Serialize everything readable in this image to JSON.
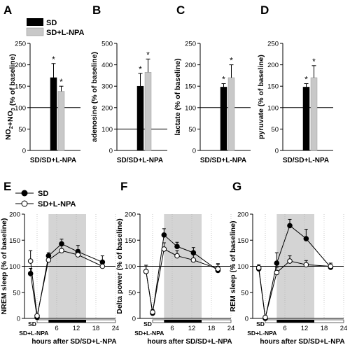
{
  "figure": {
    "legend_top": {
      "sd": "SD",
      "sdl": "SD+L-NPA"
    },
    "legend_bottom": {
      "sd": "SD",
      "sdl": "SD+L-NPA"
    },
    "colors": {
      "sd": "#000000",
      "sdl": "#c8c8c8",
      "shade": "#d4d4d4"
    }
  },
  "chart_data": [
    {
      "panel": "A",
      "type": "bar",
      "categories": [
        "SD",
        "SD+L-NPA"
      ],
      "values": [
        170,
        138
      ],
      "errors": [
        33,
        12
      ],
      "significant": [
        true,
        true
      ],
      "ylabel_main": "NO",
      "ylabel_sub1": "2",
      "ylabel_mid": "+NO",
      "ylabel_sub2": "3",
      "ylabel_tail": " (% of baseline)",
      "xlabel": "SD/SD+L-NPA",
      "ylim": [
        0,
        250
      ],
      "yticks": [
        "0",
        "50",
        "100",
        "150",
        "200",
        "250"
      ],
      "baseline": 100
    },
    {
      "panel": "B",
      "type": "bar",
      "categories": [
        "SD",
        "SD+L-NPA"
      ],
      "values": [
        300,
        365
      ],
      "errors": [
        60,
        62
      ],
      "significant": [
        true,
        true
      ],
      "ylabel": "adenosine (% of baseline)",
      "xlabel": "SD/SD+L-NPA",
      "ylim": [
        0,
        500
      ],
      "yticks": [
        "0",
        "100",
        "200",
        "300",
        "400",
        "500"
      ],
      "baseline": 100
    },
    {
      "panel": "C",
      "type": "bar",
      "categories": [
        "SD",
        "SD+L-NPA"
      ],
      "values": [
        148,
        170
      ],
      "errors": [
        8,
        30
      ],
      "significant": [
        true,
        true
      ],
      "ylabel": "lactate (% of baseline)",
      "xlabel": "SD/SD+L-NPA",
      "ylim": [
        0,
        250
      ],
      "yticks": [
        "0",
        "50",
        "100",
        "150",
        "200",
        "250"
      ],
      "baseline": 100
    },
    {
      "panel": "D",
      "type": "bar",
      "categories": [
        "SD",
        "SD+L-NPA"
      ],
      "values": [
        148,
        170
      ],
      "errors": [
        8,
        28
      ],
      "significant": [
        true,
        true
      ],
      "ylabel": "pyruvate (% of baseline)",
      "xlabel": "SD/SD+L-NPA",
      "ylim": [
        0,
        250
      ],
      "yticks": [
        "0",
        "50",
        "100",
        "150",
        "200",
        "250"
      ],
      "baseline": 100
    },
    {
      "panel": "E",
      "type": "line",
      "ylabel": "NREM sleep (% of baseline)",
      "xlabel": "hours after SD/SD+L-NPA",
      "ylim": [
        0,
        200
      ],
      "yticks": [
        "0",
        "50",
        "100",
        "150",
        "200"
      ],
      "xticks": [
        "6",
        "12",
        "18",
        "24"
      ],
      "x_sd_label": "SD",
      "x_sdl_label": "SD+L-NPA",
      "shade": [
        3.5,
        15
      ],
      "dark_period": [
        3.5,
        15
      ],
      "baseline": 100,
      "series": [
        {
          "name": "SD",
          "x": [
            -2,
            0,
            3.5,
            7.5,
            12.5,
            20
          ],
          "y": [
            86,
            2,
            120,
            143,
            128,
            108
          ],
          "err": [
            10,
            3,
            6,
            9,
            12,
            12
          ]
        },
        {
          "name": "SD+L-NPA",
          "x": [
            -2,
            0,
            3.5,
            7.5,
            12.5,
            20
          ],
          "y": [
            110,
            5,
            112,
            130,
            122,
            100
          ],
          "err": [
            20,
            3,
            8,
            12,
            10,
            10
          ]
        }
      ]
    },
    {
      "panel": "F",
      "type": "line",
      "ylabel": "Delta power (% of baseline)",
      "xlabel": "hours after SD/SD+L-NPA",
      "ylim": [
        0,
        200
      ],
      "yticks": [
        "0",
        "50",
        "100",
        "150",
        "200"
      ],
      "xticks": [
        "6",
        "12",
        "18",
        "24"
      ],
      "x_sd_label": "SD",
      "x_sdl_label": "SD+L-NPA",
      "shade": [
        3.5,
        15
      ],
      "dark_period": [
        3.5,
        15
      ],
      "baseline": 100,
      "series": [
        {
          "name": "SD",
          "x": [
            -2,
            0,
            3.5,
            7.5,
            12.5,
            20
          ],
          "y": [
            90,
            10,
            160,
            138,
            126,
            92
          ],
          "err": [
            12,
            5,
            12,
            8,
            10,
            12
          ]
        },
        {
          "name": "SD+L-NPA",
          "x": [
            -2,
            0,
            3.5,
            7.5,
            12.5,
            20
          ],
          "y": [
            90,
            12,
            133,
            120,
            112,
            95
          ],
          "err": [
            12,
            5,
            12,
            10,
            10,
            10
          ]
        }
      ]
    },
    {
      "panel": "G",
      "type": "line",
      "ylabel": "REM sleep (% of baseline)",
      "xlabel": "hours after SD/SD+L-NPA",
      "ylim": [
        0,
        200
      ],
      "yticks": [
        "0",
        "50",
        "100",
        "150",
        "200"
      ],
      "xticks": [
        "6",
        "12",
        "18",
        "24"
      ],
      "x_sd_label": "SD",
      "x_sdl_label": "SD+L-NPA",
      "shade": [
        3.5,
        15
      ],
      "dark_period": [
        3.5,
        15
      ],
      "baseline": 100,
      "series": [
        {
          "name": "SD",
          "x": [
            -2,
            0,
            3.5,
            7.5,
            12.5,
            20
          ],
          "y": [
            95,
            0,
            106,
            178,
            153,
            98
          ],
          "err": [
            6,
            3,
            20,
            12,
            18,
            8
          ]
        },
        {
          "name": "SD+L-NPA",
          "x": [
            -2,
            0,
            3.5,
            7.5,
            12.5,
            20
          ],
          "y": [
            97,
            2,
            88,
            110,
            103,
            100
          ],
          "err": [
            6,
            3,
            10,
            10,
            8,
            6
          ]
        }
      ]
    }
  ]
}
